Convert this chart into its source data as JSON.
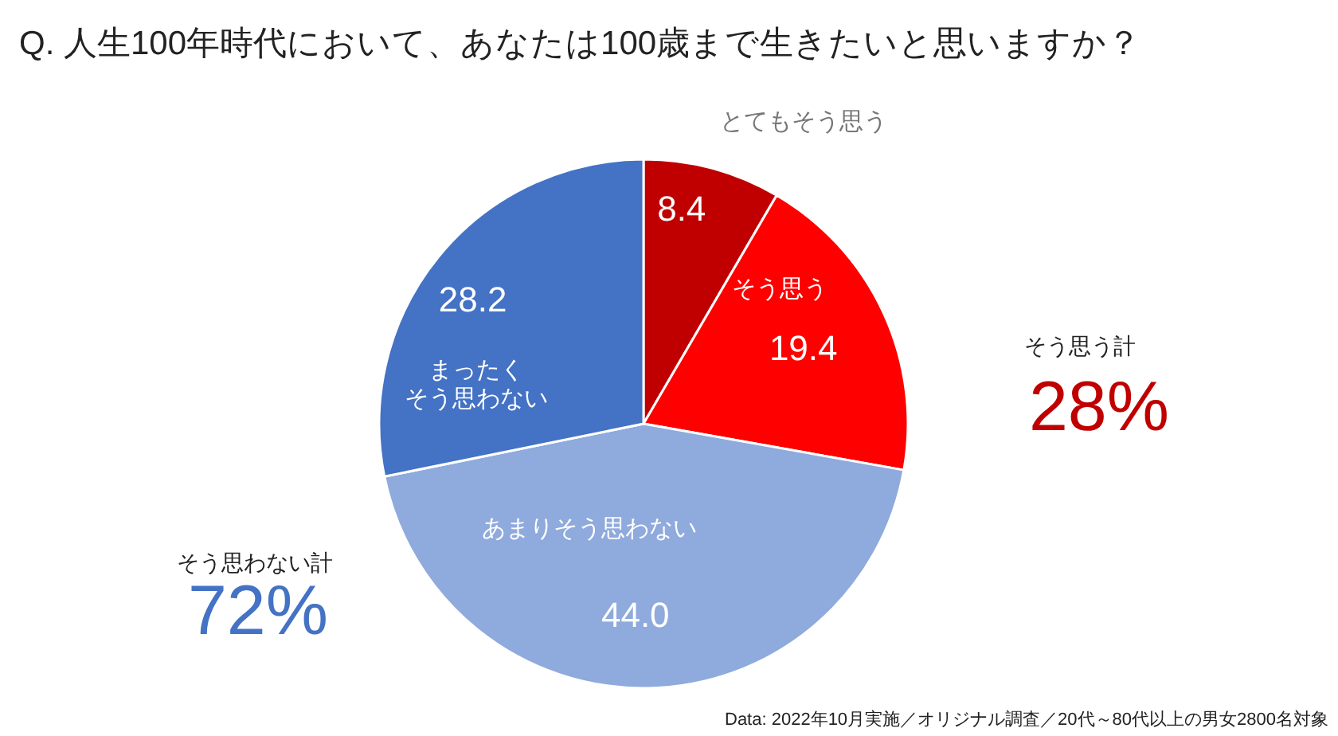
{
  "chart_data": {
    "type": "pie",
    "title": "Q.  人生100年時代において、あなたは100歳まで生きたいと思いますか？",
    "categories": [
      "とてもそう思う",
      "そう思う",
      "あまりそう思わない",
      "まったくそう思わない"
    ],
    "values": [
      8.4,
      19.4,
      44.0,
      28.2
    ],
    "colors": [
      "#c00000",
      "#ff0000",
      "#8faadc",
      "#4472c4"
    ],
    "value_labels": [
      "8.4",
      "19.4",
      "44.0",
      "28.2"
    ],
    "annotations": [
      "そう思う計",
      "28%",
      "そう思わない計",
      "72%",
      "Data:   2022年10月実施／オリジナル調査／20代～80代以上の男女2800名対象"
    ]
  }
}
